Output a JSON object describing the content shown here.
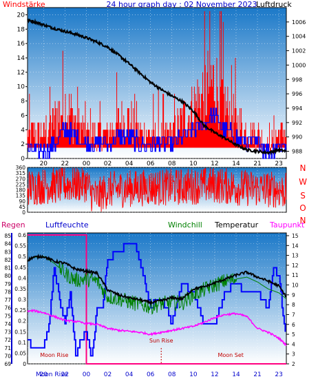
{
  "header": {
    "left_label": "Windstärke",
    "title": "24 hour graph day : 02 November 2023",
    "right_label": "Luftdruck"
  },
  "colors": {
    "sky_top": "#1a78c8",
    "sky_bottom": "#ffffff",
    "wind_gust": "#ff0000",
    "wind_avg": "#0000ff",
    "pressure": "#000000",
    "direction": "#ff0000",
    "humidity": "#0000ff",
    "temperature": "#000000",
    "windchill": "#008000",
    "dewpoint": "#ff00ff",
    "rain": "#ff0080",
    "regen_label": "#cc0066",
    "compass": "#ff0000",
    "event": "#c00000"
  },
  "x_ticks": [
    "20",
    "22",
    "00",
    "02",
    "04",
    "06",
    "08",
    "10",
    "12",
    "14",
    "21",
    "23"
  ],
  "chart_data": [
    {
      "type": "line",
      "title": "24 hour graph day : 02 November 2023",
      "x_tick_labels": [
        "20",
        "22",
        "00",
        "02",
        "04",
        "06",
        "08",
        "10",
        "12",
        "14",
        "21",
        "23"
      ],
      "left_axis": {
        "label": "Windstärke",
        "ticks": [
          0,
          2,
          4,
          6,
          8,
          10,
          12,
          14,
          16,
          18,
          20
        ],
        "range": [
          0,
          21
        ]
      },
      "right_axis": {
        "label": "Luftdruck",
        "ticks": [
          988,
          990,
          992,
          994,
          996,
          998,
          1000,
          1002,
          1004,
          1006
        ],
        "range": [
          987,
          1008
        ]
      },
      "series": [
        {
          "name": "Luftdruck",
          "axis": "right",
          "x": [
            18.5,
            19,
            20,
            21,
            22,
            23,
            24,
            25,
            26,
            27,
            28,
            29,
            30,
            31,
            32,
            33,
            34,
            35,
            36,
            37,
            38,
            39,
            40,
            41,
            42,
            42.7
          ],
          "values": [
            1006.2,
            1006.1,
            1005.6,
            1005.1,
            1004.7,
            1004.3,
            1003.8,
            1003.2,
            1002.5,
            1001.4,
            1000.2,
            998.9,
            997.6,
            996.6,
            995.7,
            994.9,
            993.6,
            991.6,
            990.6,
            989.8,
            988.9,
            988.2,
            988.0,
            987.8,
            988.2,
            988.0
          ]
        },
        {
          "name": "Windstärke Böen",
          "axis": "left",
          "style": "spiky",
          "x": [
            18.5,
            20,
            21,
            22,
            23,
            24,
            25,
            26,
            27,
            28,
            29,
            30,
            31,
            32,
            33,
            34,
            35,
            36,
            37,
            38,
            39,
            40,
            41,
            42,
            42.7
          ],
          "values": [
            4,
            4,
            6,
            8,
            6,
            4,
            4,
            4,
            6,
            6,
            4,
            4,
            4,
            4,
            6,
            8,
            10,
            12,
            8,
            6,
            4,
            4,
            2,
            4,
            4
          ]
        },
        {
          "name": "Windstärke Mittel",
          "axis": "left",
          "style": "stepped",
          "x": [
            18.5,
            20,
            21,
            22,
            23,
            24,
            25,
            26,
            27,
            28,
            29,
            30,
            31,
            32,
            33,
            34,
            35,
            36,
            37,
            38,
            39,
            40,
            41,
            42,
            42.7
          ],
          "values": [
            1,
            1,
            2,
            4,
            3,
            2,
            2,
            2,
            3,
            3,
            2,
            2,
            2,
            2,
            3,
            4,
            5,
            6,
            4,
            3,
            2,
            2,
            1,
            2,
            2
          ]
        }
      ]
    },
    {
      "type": "line",
      "left_axis": {
        "ticks": [
          0,
          45,
          90,
          135,
          180,
          225,
          270,
          315,
          360
        ],
        "range": [
          0,
          360
        ]
      },
      "right_labels": [
        "N",
        "W",
        "S",
        "O",
        "N"
      ],
      "series": [
        {
          "name": "Windrichtung",
          "style": "noise",
          "x": [
            18.5,
            20,
            22,
            24,
            24.5,
            25,
            26,
            28,
            30,
            32,
            34,
            36,
            38,
            40,
            42,
            42.7
          ],
          "values": [
            200,
            210,
            220,
            230,
            150,
            120,
            180,
            190,
            200,
            200,
            210,
            220,
            200,
            190,
            180,
            170
          ]
        }
      ]
    },
    {
      "type": "line",
      "legend": [
        "Regen",
        "Luftfeuchte",
        "Windchill",
        "Temperatur",
        "Taupunkt"
      ],
      "axis_regen": {
        "ticks": [
          0,
          0.05,
          0.1,
          0.15,
          0.2,
          0.25,
          0.3,
          0.35,
          0.4,
          0.45,
          0.5,
          0.55,
          0.6
        ],
        "tick_labels": [
          "0",
          "0.05",
          "0.1",
          "0.15",
          "0.2",
          "0.25",
          "0.3",
          "0.35",
          "0.4",
          "0.45",
          "0.5",
          "0.55",
          "0.6"
        ],
        "range": [
          0,
          0.6
        ]
      },
      "axis_humidity": {
        "ticks": [
          69,
          70,
          71,
          72,
          73,
          74,
          75,
          76,
          77,
          78,
          79,
          80,
          81,
          82,
          83,
          84,
          85
        ],
        "range": [
          69,
          85
        ]
      },
      "axis_temperature": {
        "ticks": [
          2,
          3,
          4,
          5,
          6,
          7,
          8,
          9,
          10,
          11,
          12,
          13,
          14,
          15
        ],
        "range": [
          2,
          15
        ]
      },
      "series": [
        {
          "name": "Regen",
          "axis": "regen",
          "x": [
            18.5,
            24,
            24,
            42.7
          ],
          "values": [
            0.6,
            0.6,
            0,
            0
          ]
        },
        {
          "name": "Luftfeuchte",
          "axis": "humidity",
          "x": [
            18.5,
            19,
            20,
            20.5,
            21,
            21.5,
            22,
            22.5,
            23,
            23.5,
            24,
            24.5,
            25,
            25.5,
            26,
            27,
            28,
            28.5,
            29,
            30,
            30.5,
            31,
            31.5,
            32,
            33,
            34,
            35,
            36,
            37,
            38,
            39,
            40,
            41,
            41.5,
            42,
            42.5,
            42.7
          ],
          "values": [
            72,
            71,
            71,
            74,
            81,
            77,
            74,
            78,
            70,
            72,
            73,
            69.5,
            76,
            76,
            82,
            83,
            84,
            84,
            82,
            76,
            77,
            77,
            76,
            74,
            79,
            78,
            74,
            74,
            78,
            79,
            78,
            78,
            76,
            81,
            80,
            74,
            73
          ]
        },
        {
          "name": "Temperatur",
          "axis": "temperature",
          "x": [
            18.5,
            19,
            20,
            21,
            22,
            22.5,
            23,
            24,
            25,
            26,
            27,
            28,
            29,
            30,
            31,
            32,
            33,
            34,
            35,
            36,
            37,
            38,
            39,
            40,
            41,
            42,
            42.7
          ],
          "values": [
            12.5,
            12.8,
            12.9,
            12.4,
            12.2,
            11.9,
            11.6,
            11.4,
            11.2,
            9.5,
            9.0,
            8.7,
            8.5,
            8.2,
            8.4,
            8.7,
            8.6,
            9.6,
            9.8,
            10.2,
            10.6,
            11.0,
            11.3,
            10.8,
            10.4,
            9.9,
            8.8
          ]
        },
        {
          "name": "Windchill",
          "axis": "temperature",
          "x": [
            18.5,
            19,
            20,
            21,
            22,
            22.5,
            23,
            24,
            25,
            26,
            27,
            28,
            29,
            30,
            31,
            32,
            33,
            34,
            35,
            36,
            37,
            38,
            39,
            40,
            41,
            42,
            42.7
          ],
          "values": [
            12.5,
            12.8,
            12.9,
            12.2,
            11.2,
            10.8,
            10.5,
            10.6,
            10.4,
            8.8,
            8.6,
            8.3,
            8.0,
            7.8,
            8.1,
            8.2,
            8.2,
            9.0,
            9.5,
            10.0,
            10.4,
            10.6,
            10.8,
            10.3,
            9.6,
            9.2,
            8.6
          ]
        },
        {
          "name": "Taupunkt",
          "axis": "temperature",
          "x": [
            18.5,
            19,
            20,
            21,
            22,
            23,
            24,
            25,
            26,
            27,
            28,
            29,
            30,
            31,
            32,
            33,
            34,
            35,
            36,
            37,
            38,
            39,
            40,
            41,
            42,
            42.7
          ],
          "values": [
            7.3,
            7.4,
            7.2,
            6.8,
            6.4,
            6.3,
            6.1,
            6.0,
            5.6,
            5.4,
            5.3,
            5.2,
            5.0,
            5.2,
            5.4,
            5.6,
            5.8,
            6.2,
            6.7,
            7.0,
            7.1,
            6.8,
            5.6,
            5.2,
            4.6,
            3.9
          ]
        }
      ],
      "events": [
        {
          "label": "Moon Rise",
          "x": 21.0
        },
        {
          "label": "Sun Rise",
          "x": 31.0
        },
        {
          "label": "Moon Set",
          "x": 37.5
        }
      ],
      "bottom_labels": [
        "Moon Rise"
      ]
    }
  ]
}
